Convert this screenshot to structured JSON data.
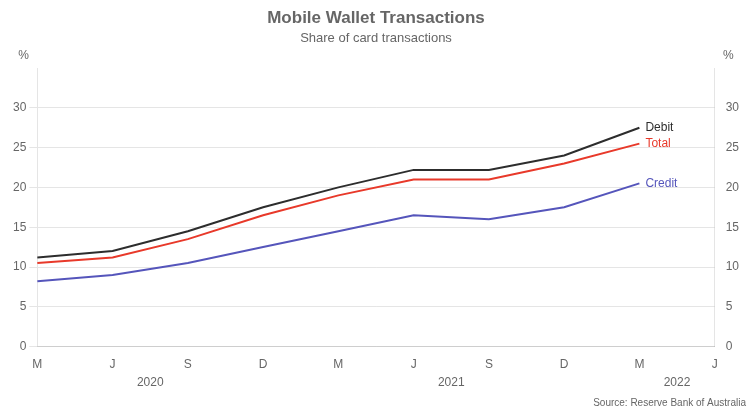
{
  "chart_data": {
    "type": "line",
    "title": "Mobile Wallet Transactions",
    "subtitle": "Share of card transactions",
    "source": "Source: Reserve Bank of Australia",
    "categories": [
      "M",
      "J",
      "S",
      "D",
      "M",
      "J",
      "S",
      "D",
      "M",
      "J"
    ],
    "category_groups": [
      {
        "label": "2020",
        "count": 4
      },
      {
        "label": "2021",
        "count": 4
      },
      {
        "label": "2022",
        "count": 2
      }
    ],
    "series": [
      {
        "name": "Debit",
        "color": "#2d2d2d",
        "values": [
          11.2,
          12.0,
          14.5,
          17.5,
          20.0,
          22.2,
          22.2,
          24.0,
          27.5,
          null
        ]
      },
      {
        "name": "Total",
        "color": "#e8392a",
        "values": [
          10.5,
          11.2,
          13.5,
          16.5,
          19.0,
          21.0,
          21.0,
          23.0,
          25.5,
          null
        ]
      },
      {
        "name": "Credit",
        "color": "#5555bb",
        "values": [
          8.2,
          9.0,
          10.5,
          12.5,
          14.5,
          16.5,
          16.0,
          17.5,
          20.5,
          null
        ]
      }
    ],
    "ylabel": "%",
    "y2label": "%",
    "ylim": [
      0,
      35
    ],
    "yticks": [
      0,
      5,
      10,
      15,
      20,
      25,
      30
    ],
    "y2lim": [
      0,
      35
    ],
    "y2ticks": [
      0,
      5,
      10,
      15,
      20,
      25,
      30
    ],
    "grid": true
  }
}
